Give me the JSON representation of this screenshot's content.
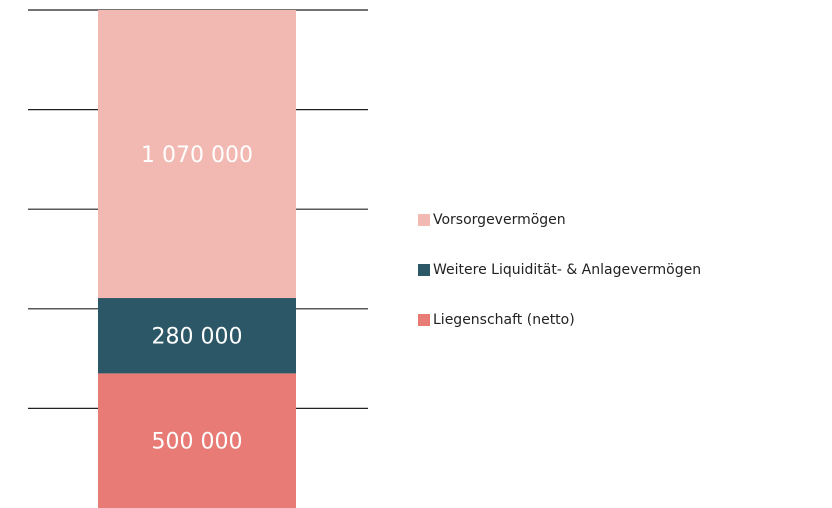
{
  "chart_data": {
    "type": "stacked_bar",
    "categories": [
      null
    ],
    "series": [
      {
        "name": "Liegenschaft (netto)",
        "color": "#e87b76",
        "values": [
          500000
        ],
        "value_labels": [
          "500 000"
        ]
      },
      {
        "name": "Weitere Liquidität- & Anlagevermögen",
        "color": "#2b5766",
        "values": [
          280000
        ],
        "value_labels": [
          "280 000"
        ]
      },
      {
        "name": "Vorsorgevermögen",
        "color": "#f2b8b2",
        "values": [
          1070000
        ],
        "value_labels": [
          "1 070 000"
        ]
      }
    ],
    "ylim": [
      0,
      1850000
    ],
    "yticks": [
      370000,
      740000,
      1110000,
      1480000,
      1850000
    ],
    "grid": true,
    "legend": "right"
  }
}
